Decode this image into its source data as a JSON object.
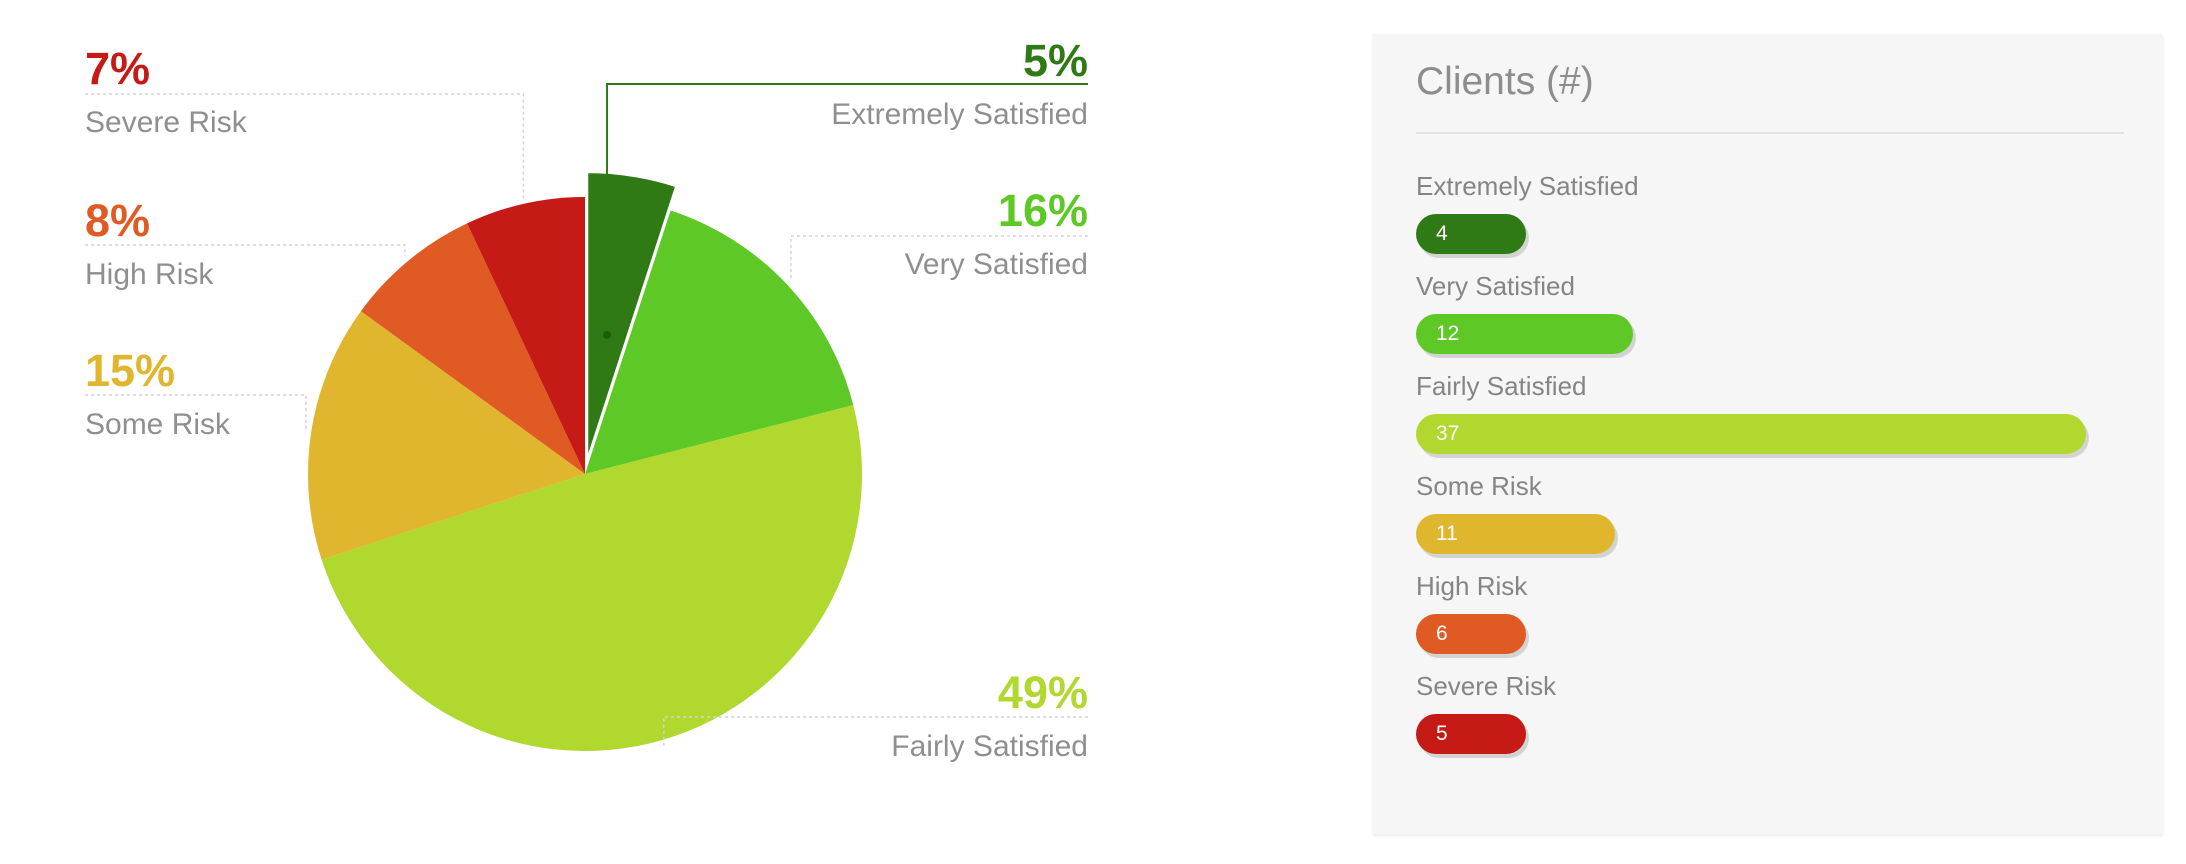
{
  "chart_data": [
    {
      "type": "pie",
      "slices": [
        {
          "label": "Extremely Satisfied",
          "value": 5,
          "value_label": "5%",
          "color": "#2f7a14",
          "exploded": true
        },
        {
          "label": "Very Satisfied",
          "value": 16,
          "value_label": "16%",
          "color": "#5ec926"
        },
        {
          "label": "Fairly Satisfied",
          "value": 49,
          "value_label": "49%",
          "color": "#b0d82e"
        },
        {
          "label": "Some Risk",
          "value": 15,
          "value_label": "15%",
          "color": "#e0b62e"
        },
        {
          "label": "High Risk",
          "value": 8,
          "value_label": "8%",
          "color": "#e05a24"
        },
        {
          "label": "Severe Risk",
          "value": 7,
          "value_label": "7%",
          "color": "#c51a16"
        }
      ]
    },
    {
      "type": "bar",
      "orientation": "horizontal",
      "title": "Clients (#)",
      "categories": [
        "Extremely Satisfied",
        "Very Satisfied",
        "Fairly Satisfied",
        "Some Risk",
        "High Risk",
        "Severe Risk"
      ],
      "values": [
        4,
        12,
        37,
        11,
        6,
        5
      ],
      "colors": [
        "#2f7a14",
        "#5ec926",
        "#b0d82e",
        "#e0b62e",
        "#e05a24",
        "#c51a16"
      ]
    }
  ]
}
